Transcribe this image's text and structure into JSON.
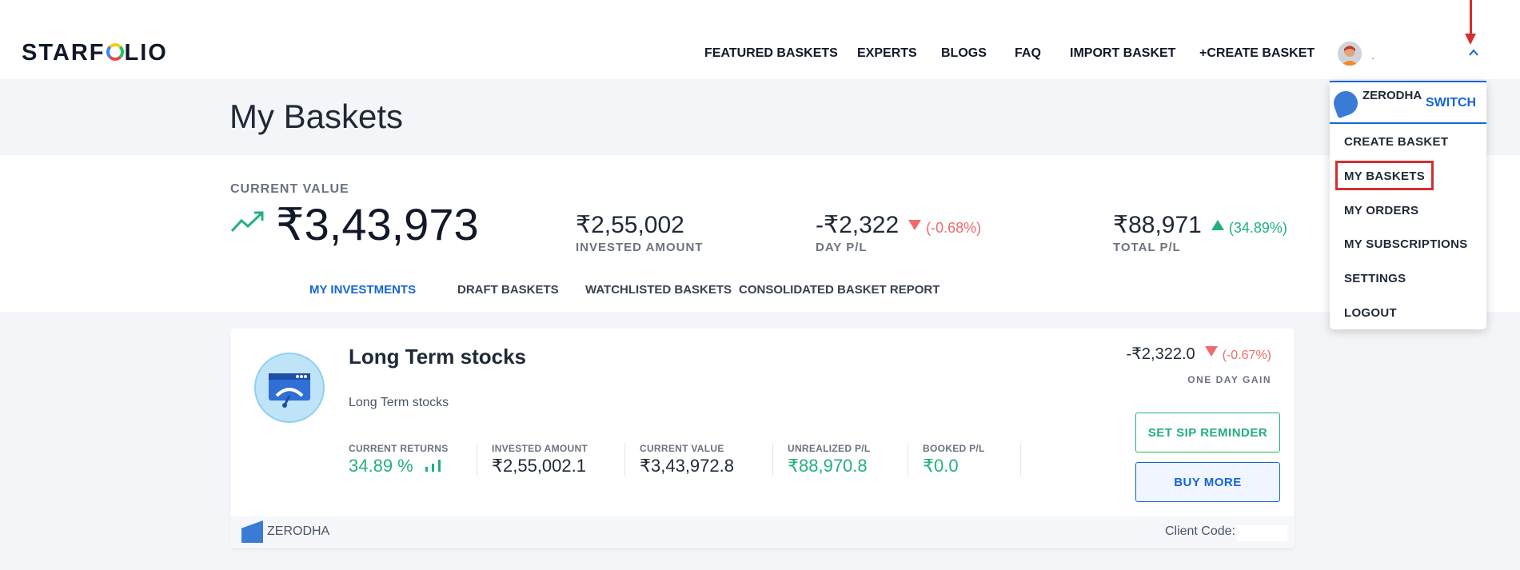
{
  "header": {
    "logo": {
      "before": "STARF",
      "after": "LIO"
    },
    "nav": [
      "FEATURED BASKETS",
      "EXPERTS",
      "BLOGS",
      "FAQ",
      "IMPORT BASKET",
      "+CREATE BASKET"
    ],
    "user_name": "."
  },
  "page": {
    "title": "My Baskets"
  },
  "summary": {
    "current_value_label": "CURRENT VALUE",
    "current_value": "₹3,43,973",
    "invested_amount": "₹2,55,002",
    "invested_amount_label": "INVESTED AMOUNT",
    "day_pl": "-₹2,322",
    "day_pl_pct": "(-0.68%)",
    "day_pl_label": "DAY P/L",
    "total_pl": "₹88,971",
    "total_pl_pct": "(34.89%)",
    "total_pl_label": "TOTAL P/L"
  },
  "tabs": [
    "MY INVESTMENTS",
    "DRAFT BASKETS",
    "WATCHLISTED BASKETS",
    "CONSOLIDATED BASKET REPORT"
  ],
  "basket": {
    "name": "Long Term stocks",
    "description": "Long Term stocks",
    "day_gain": "-₹2,322.0",
    "day_gain_pct": "(-0.67%)",
    "day_gain_label": "ONE DAY GAIN",
    "metrics": [
      {
        "label": "CURRENT RETURNS",
        "value": "34.89 %"
      },
      {
        "label": "INVESTED AMOUNT",
        "value": "₹2,55,002.1"
      },
      {
        "label": "CURRENT VALUE",
        "value": "₹3,43,972.8"
      },
      {
        "label": "UNREALIZED P/L",
        "value": "₹88,970.8"
      },
      {
        "label": "BOOKED P/L",
        "value": "₹0.0"
      }
    ],
    "sip_button": "SET SIP REMINDER",
    "buy_button": "BUY MORE",
    "broker": "ZERODHA",
    "client_code_label": "Client Code:"
  },
  "dropdown": {
    "broker": "ZERODHA",
    "switch_label": "SWITCH",
    "items": [
      "CREATE BASKET",
      "MY BASKETS",
      "MY ORDERS",
      "MY SUBSCRIPTIONS",
      "SETTINGS",
      "LOGOUT"
    ]
  },
  "colors": {
    "accent": "#1565d8",
    "positive": "#22b07d",
    "negative": "#ef6b6b",
    "highlight": "#d32f2f"
  }
}
